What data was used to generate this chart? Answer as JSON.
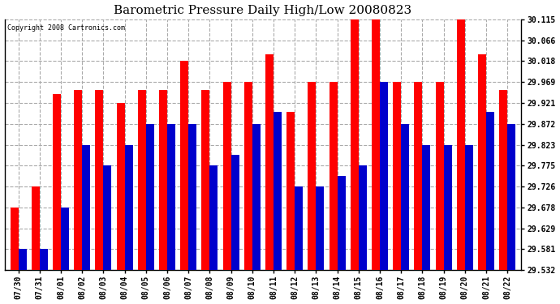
{
  "title": "Barometric Pressure Daily High/Low 20080823",
  "copyright": "Copyright 2008 Cartronics.com",
  "categories": [
    "07/30",
    "07/31",
    "08/01",
    "08/02",
    "08/03",
    "08/04",
    "08/05",
    "08/06",
    "08/07",
    "08/08",
    "08/09",
    "08/10",
    "08/11",
    "08/12",
    "08/13",
    "08/14",
    "08/15",
    "08/16",
    "08/17",
    "08/18",
    "08/19",
    "08/20",
    "08/21",
    "08/22"
  ],
  "highs": [
    29.678,
    29.726,
    29.94,
    29.95,
    29.95,
    29.921,
    29.95,
    29.95,
    30.018,
    29.95,
    29.969,
    29.969,
    30.034,
    29.9,
    29.969,
    29.969,
    30.115,
    30.115,
    29.969,
    29.969,
    29.969,
    30.115,
    30.034,
    29.95
  ],
  "lows": [
    29.581,
    29.581,
    29.678,
    29.823,
    29.775,
    29.823,
    29.872,
    29.872,
    29.872,
    29.775,
    29.799,
    29.872,
    29.9,
    29.726,
    29.726,
    29.75,
    29.775,
    29.969,
    29.872,
    29.823,
    29.823,
    29.823,
    29.9,
    29.872
  ],
  "high_color": "#ff0000",
  "low_color": "#0000cc",
  "background_color": "#ffffff",
  "grid_color": "#aaaaaa",
  "yticks": [
    29.532,
    29.581,
    29.629,
    29.678,
    29.726,
    29.775,
    29.823,
    29.872,
    29.921,
    29.969,
    30.018,
    30.066,
    30.115
  ],
  "ymin": 29.532,
  "ymax": 30.115,
  "bar_width": 0.38
}
